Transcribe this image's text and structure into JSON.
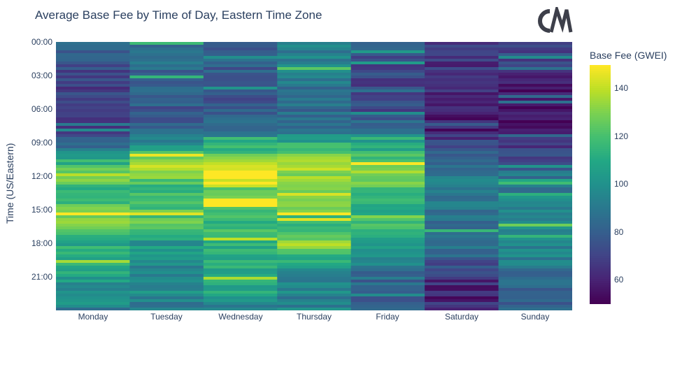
{
  "chart_data": {
    "type": "heatmap",
    "title": "Average Base Fee by Time of Day, Eastern Time Zone",
    "xlabel": "",
    "ylabel": "Time (US/Eastern)",
    "x_categories": [
      "Monday",
      "Tuesday",
      "Wednesday",
      "Thursday",
      "Friday",
      "Saturday",
      "Sunday"
    ],
    "y_tick_labels": [
      "00:00",
      "03:00",
      "06:00",
      "09:00",
      "12:00",
      "15:00",
      "18:00",
      "21:00"
    ],
    "y_range_hours": [
      0,
      24
    ],
    "colorbar": {
      "title": "Base Fee (GWEI)",
      "ticks": [
        60,
        80,
        100,
        120,
        140
      ],
      "range": [
        50,
        150
      ],
      "colorscale": "viridis"
    },
    "series": [
      {
        "name": "Monday",
        "hourly_avg": [
          84,
          80,
          74,
          70,
          68,
          68,
          66,
          66,
          70,
          84,
          104,
          120,
          134,
          118,
          120,
          128,
          132,
          118,
          110,
          112,
          116,
          104,
          98,
          106
        ]
      },
      {
        "name": "Tuesday",
        "hourly_avg": [
          88,
          86,
          84,
          82,
          82,
          80,
          78,
          78,
          84,
          100,
          128,
          138,
          130,
          112,
          118,
          124,
          122,
          110,
          102,
          100,
          98,
          96,
          100,
          96
        ]
      },
      {
        "name": "Wednesday",
        "hourly_avg": [
          84,
          82,
          80,
          78,
          76,
          76,
          76,
          80,
          92,
          108,
          124,
          140,
          146,
          130,
          128,
          124,
          118,
          116,
          112,
          114,
          110,
          108,
          110,
          102
        ]
      },
      {
        "name": "Thursday",
        "hourly_avg": [
          96,
          94,
          92,
          90,
          86,
          84,
          84,
          86,
          92,
          112,
          126,
          136,
          134,
          124,
          124,
          128,
          118,
          124,
          140,
          114,
          106,
          98,
          96,
          94
        ]
      },
      {
        "name": "Friday",
        "hourly_avg": [
          80,
          78,
          74,
          72,
          70,
          70,
          72,
          80,
          92,
          104,
          118,
          126,
          134,
          124,
          114,
          114,
          116,
          110,
          100,
          96,
          90,
          84,
          80,
          80
        ]
      },
      {
        "name": "Saturday",
        "hourly_avg": [
          70,
          68,
          66,
          64,
          62,
          60,
          58,
          58,
          60,
          72,
          84,
          90,
          94,
          92,
          88,
          86,
          86,
          84,
          86,
          80,
          72,
          64,
          60,
          60
        ]
      },
      {
        "name": "Sunday",
        "hourly_avg": [
          76,
          72,
          66,
          62,
          58,
          56,
          54,
          54,
          58,
          64,
          72,
          82,
          90,
          92,
          96,
          100,
          96,
          98,
          94,
          92,
          88,
          86,
          84,
          82
        ]
      }
    ]
  }
}
